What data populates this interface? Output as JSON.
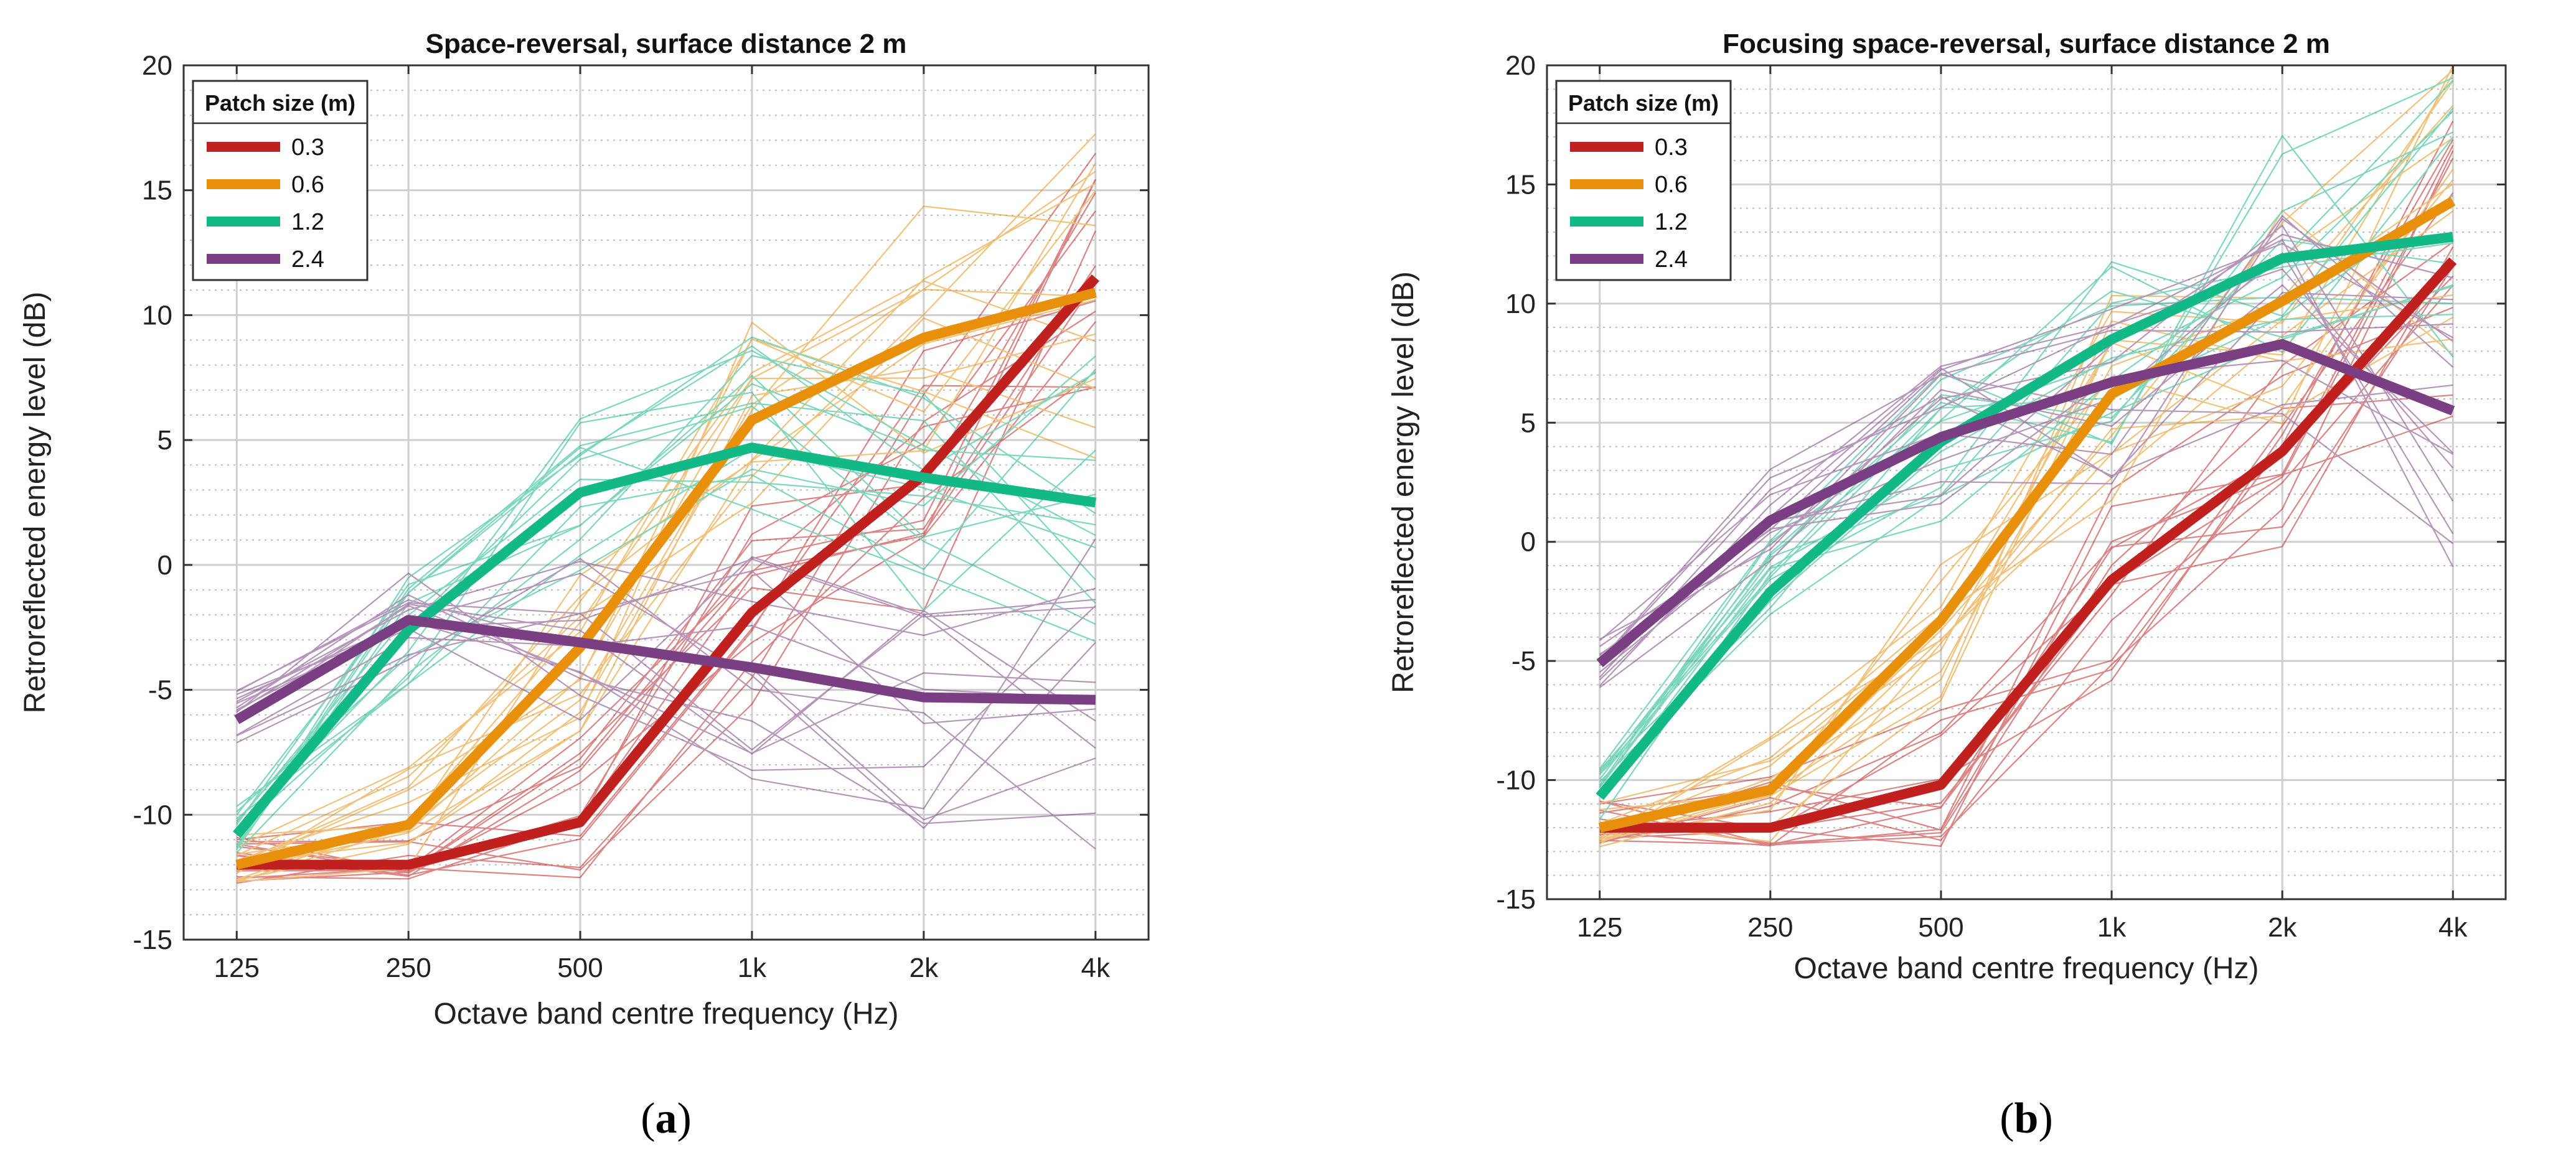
{
  "chart_data": [
    {
      "type": "line",
      "panel_label_open": "(",
      "panel_label_letter": "a",
      "panel_label_close": ")",
      "title": "Space-reversal, surface distance 2 m",
      "xlabel": "Octave band centre frequency (Hz)",
      "ylabel": "Retroreflected energy level (dB)",
      "categories": [
        "125",
        "250",
        "500",
        "1k",
        "2k",
        "4k"
      ],
      "ylim": [
        -15,
        20
      ],
      "yticks": [
        "-15",
        "-10",
        "-5",
        "0",
        "5",
        "10",
        "15",
        "20"
      ],
      "grid": true,
      "legend": {
        "title": "Patch size (m)",
        "placement": "top-left"
      },
      "series": [
        {
          "name": "0.3",
          "color": "#c0201e",
          "values": [
            -12,
            -12,
            -10.3,
            -1.9,
            3.6,
            11.5
          ]
        },
        {
          "name": "0.6",
          "color": "#e8900c",
          "values": [
            -12,
            -10.4,
            -3.3,
            5.8,
            9.1,
            10.9
          ]
        },
        {
          "name": "1.2",
          "color": "#12b886",
          "values": [
            -10.8,
            -2.6,
            2.9,
            4.7,
            3.5,
            2.5
          ]
        },
        {
          "name": "2.4",
          "color": "#7a3f82",
          "values": [
            -6.2,
            -2.2,
            -3.1,
            -4.1,
            -5.3,
            -5.4
          ]
        }
      ]
    },
    {
      "type": "line",
      "panel_label_open": "(",
      "panel_label_letter": "b",
      "panel_label_close": ")",
      "title": "Focusing space-reversal, surface distance 2 m",
      "xlabel": "Octave band centre frequency (Hz)",
      "ylabel": "Retroreflected energy level (dB)",
      "categories": [
        "125",
        "250",
        "500",
        "1k",
        "2k",
        "4k"
      ],
      "ylim": [
        -15,
        20
      ],
      "yticks": [
        "-15",
        "-10",
        "-5",
        "0",
        "5",
        "10",
        "15",
        "20"
      ],
      "grid": true,
      "legend": {
        "title": "Patch size (m)",
        "placement": "top-left"
      },
      "series": [
        {
          "name": "0.3",
          "color": "#c0201e",
          "values": [
            -12,
            -12,
            -10.2,
            -1.6,
            3.8,
            11.8
          ]
        },
        {
          "name": "0.6",
          "color": "#e8900c",
          "values": [
            -12,
            -10.4,
            -3.3,
            6.2,
            10.1,
            14.3
          ]
        },
        {
          "name": "1.2",
          "color": "#12b886",
          "values": [
            -10.7,
            -2.1,
            4.2,
            8.5,
            11.9,
            12.8
          ]
        },
        {
          "name": "2.4",
          "color": "#7a3f82",
          "values": [
            -5.1,
            0.9,
            4.4,
            6.7,
            8.3,
            5.5
          ]
        }
      ]
    }
  ]
}
